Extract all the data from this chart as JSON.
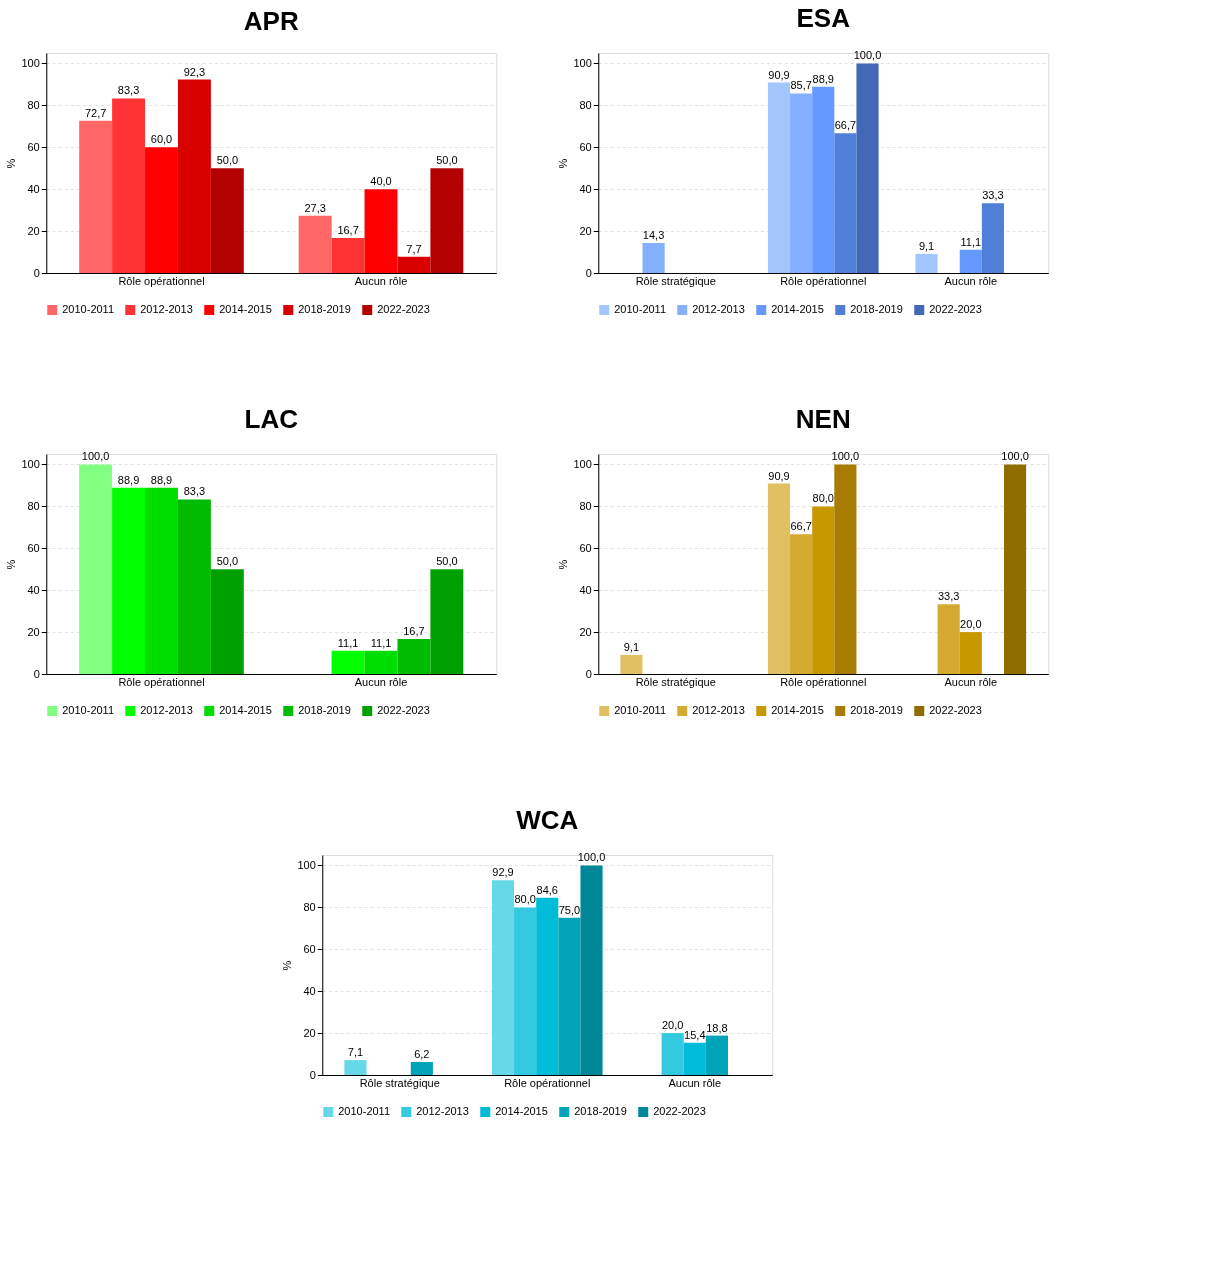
{
  "chart_data": [
    {
      "type": "bar",
      "title": "APR",
      "ylabel": "%",
      "categories": [
        "Rôle opérationnel",
        "Aucun rôle"
      ],
      "ylim": [
        0,
        105
      ],
      "yticks": [
        0,
        20,
        40,
        60,
        80,
        100
      ],
      "grid": "y",
      "legend": "bottom",
      "series": [
        {
          "name": "2010-2011",
          "color": "#ff6666",
          "values": [
            72.7,
            27.3
          ],
          "value_labels": [
            "72,7",
            "27,3"
          ]
        },
        {
          "name": "2012-2013",
          "color": "#ff3333",
          "values": [
            83.3,
            16.7
          ],
          "value_labels": [
            "83,3",
            "16,7"
          ]
        },
        {
          "name": "2014-2015",
          "color": "#ff0000",
          "values": [
            60.0,
            40.0
          ],
          "value_labels": [
            "60,0",
            "40,0"
          ]
        },
        {
          "name": "2018-2019",
          "color": "#d90000",
          "values": [
            92.3,
            7.7
          ],
          "value_labels": [
            "92,3",
            "7,7"
          ]
        },
        {
          "name": "2022-2023",
          "color": "#b30000",
          "values": [
            50.0,
            50.0
          ],
          "value_labels": [
            "50,0",
            "50,0"
          ]
        }
      ]
    },
    {
      "type": "bar",
      "title": "ESA",
      "ylabel": "%",
      "categories": [
        "Rôle stratégique",
        "Rôle opérationnel",
        "Aucun rôle"
      ],
      "ylim": [
        0,
        105
      ],
      "yticks": [
        0,
        20,
        40,
        60,
        80,
        100
      ],
      "grid": "y",
      "legend": "bottom",
      "series": [
        {
          "name": "2010-2011",
          "color": "#a3c6ff",
          "values": [
            null,
            90.9,
            9.1
          ],
          "value_labels": [
            null,
            "90,9",
            "9,1"
          ]
        },
        {
          "name": "2012-2013",
          "color": "#85b0ff",
          "values": [
            14.3,
            85.7,
            null
          ],
          "value_labels": [
            "14,3",
            "85,7",
            null
          ]
        },
        {
          "name": "2014-2015",
          "color": "#6699ff",
          "values": [
            null,
            88.9,
            11.1
          ],
          "value_labels": [
            null,
            "88,9",
            "11,1"
          ]
        },
        {
          "name": "2018-2019",
          "color": "#4f7fd9",
          "values": [
            null,
            66.7,
            33.3
          ],
          "value_labels": [
            null,
            "66,7",
            "33,3"
          ]
        },
        {
          "name": "2022-2023",
          "color": "#4169b8",
          "values": [
            null,
            100.0,
            null
          ],
          "value_labels": [
            null,
            "100,0",
            null
          ]
        }
      ]
    },
    {
      "type": "bar",
      "title": "LAC",
      "ylabel": "%",
      "categories": [
        "Rôle opérationnel",
        "Aucun rôle"
      ],
      "ylim": [
        0,
        105
      ],
      "yticks": [
        0,
        20,
        40,
        60,
        80,
        100
      ],
      "grid": "y",
      "legend": "bottom",
      "series": [
        {
          "name": "2010-2011",
          "color": "#80ff80",
          "values": [
            100.0,
            null
          ],
          "value_labels": [
            "100,0",
            null
          ]
        },
        {
          "name": "2012-2013",
          "color": "#00ff00",
          "values": [
            88.9,
            11.1
          ],
          "value_labels": [
            "88,9",
            "11,1"
          ]
        },
        {
          "name": "2014-2015",
          "color": "#00dd00",
          "values": [
            88.9,
            11.1
          ],
          "value_labels": [
            "88,9",
            "11,1"
          ]
        },
        {
          "name": "2018-2019",
          "color": "#00bb00",
          "values": [
            83.3,
            16.7
          ],
          "value_labels": [
            "83,3",
            "16,7"
          ]
        },
        {
          "name": "2022-2023",
          "color": "#00a000",
          "values": [
            50.0,
            50.0
          ],
          "value_labels": [
            "50,0",
            "50,0"
          ]
        }
      ]
    },
    {
      "type": "bar",
      "title": "NEN",
      "ylabel": "%",
      "categories": [
        "Rôle stratégique",
        "Rôle opérationnel",
        "Aucun rôle"
      ],
      "ylim": [
        0,
        105
      ],
      "yticks": [
        0,
        20,
        40,
        60,
        80,
        100
      ],
      "grid": "y",
      "legend": "bottom",
      "series": [
        {
          "name": "2010-2011",
          "color": "#e0c060",
          "values": [
            9.1,
            90.9,
            null
          ],
          "value_labels": [
            "9,1",
            "90,9",
            null
          ]
        },
        {
          "name": "2012-2013",
          "color": "#d4aa30",
          "values": [
            null,
            66.7,
            33.3
          ],
          "value_labels": [
            null,
            "66,7",
            "33,3"
          ]
        },
        {
          "name": "2014-2015",
          "color": "#c89800",
          "values": [
            null,
            80.0,
            20.0
          ],
          "value_labels": [
            null,
            "80,0",
            "20,0"
          ]
        },
        {
          "name": "2018-2019",
          "color": "#a87c00",
          "values": [
            null,
            100.0,
            null
          ],
          "value_labels": [
            null,
            "100,0",
            null
          ]
        },
        {
          "name": "2022-2023",
          "color": "#8f6d00",
          "values": [
            null,
            null,
            100.0
          ],
          "value_labels": [
            null,
            null,
            "100,0"
          ]
        }
      ]
    },
    {
      "type": "bar",
      "title": "WCA",
      "ylabel": "%",
      "categories": [
        "Rôle stratégique",
        "Rôle opérationnel",
        "Aucun rôle"
      ],
      "ylim": [
        0,
        105
      ],
      "yticks": [
        0,
        20,
        40,
        60,
        80,
        100
      ],
      "grid": "y",
      "legend": "bottom",
      "series": [
        {
          "name": "2010-2011",
          "color": "#66d9e8",
          "values": [
            7.1,
            92.9,
            null
          ],
          "value_labels": [
            "7,1",
            "92,9",
            null
          ]
        },
        {
          "name": "2012-2013",
          "color": "#33c9e0",
          "values": [
            null,
            80.0,
            20.0
          ],
          "value_labels": [
            null,
            "80,0",
            "20,0"
          ]
        },
        {
          "name": "2014-2015",
          "color": "#00bcd9",
          "values": [
            null,
            84.6,
            15.4
          ],
          "value_labels": [
            null,
            "84,6",
            "15,4"
          ]
        },
        {
          "name": "2018-2019",
          "color": "#00a3b8",
          "values": [
            6.2,
            75.0,
            18.8
          ],
          "value_labels": [
            "6,2",
            "75,0",
            "18,8"
          ]
        },
        {
          "name": "2022-2023",
          "color": "#008899",
          "values": [
            null,
            100.0,
            null
          ],
          "value_labels": [
            null,
            "100,0",
            null
          ]
        }
      ]
    }
  ]
}
